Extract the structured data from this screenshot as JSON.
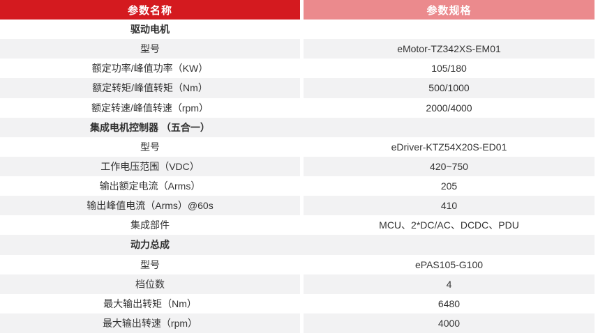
{
  "colors": {
    "header_red": "#d41a1f",
    "header_pink": "#eb8a8d",
    "stripe_gray": "#f2f2f3",
    "text": "#333333"
  },
  "table": {
    "columns": [
      {
        "label": "参数名称"
      },
      {
        "label": "参数规格"
      }
    ],
    "rows": [
      {
        "type": "section",
        "label": "驱动电机"
      },
      {
        "type": "data",
        "label": "型号",
        "value": "eMotor-TZ342XS-EM01"
      },
      {
        "type": "data",
        "label": "额定功率/峰值功率（KW）",
        "value": "105/180"
      },
      {
        "type": "data",
        "label": "额定转矩/峰值转矩（Nm）",
        "value": "500/1000"
      },
      {
        "type": "data",
        "label": "额定转速/峰值转速（rpm）",
        "value": "2000/4000"
      },
      {
        "type": "section",
        "label": "集成电机控制器 （五合一）"
      },
      {
        "type": "data",
        "label": "型号",
        "value": "eDriver-KTZ54X20S-ED01"
      },
      {
        "type": "data",
        "label": "工作电压范围（VDC）",
        "value": "420~750"
      },
      {
        "type": "data",
        "label": "输出额定电流（Arms）",
        "value": "205"
      },
      {
        "type": "data",
        "label": "输出峰值电流（Arms）@60s",
        "value": "410"
      },
      {
        "type": "data",
        "label": "集成部件",
        "value": "MCU、2*DC/AC、DCDC、PDU"
      },
      {
        "type": "section",
        "label": "动力总成"
      },
      {
        "type": "data",
        "label": "型号",
        "value": "ePAS105-G100"
      },
      {
        "type": "data",
        "label": "档位数",
        "value": "4"
      },
      {
        "type": "data",
        "label": "最大输出转矩（Nm）",
        "value": "6480"
      },
      {
        "type": "data",
        "label": "最大输出转速（rpm）",
        "value": "4000"
      }
    ]
  }
}
